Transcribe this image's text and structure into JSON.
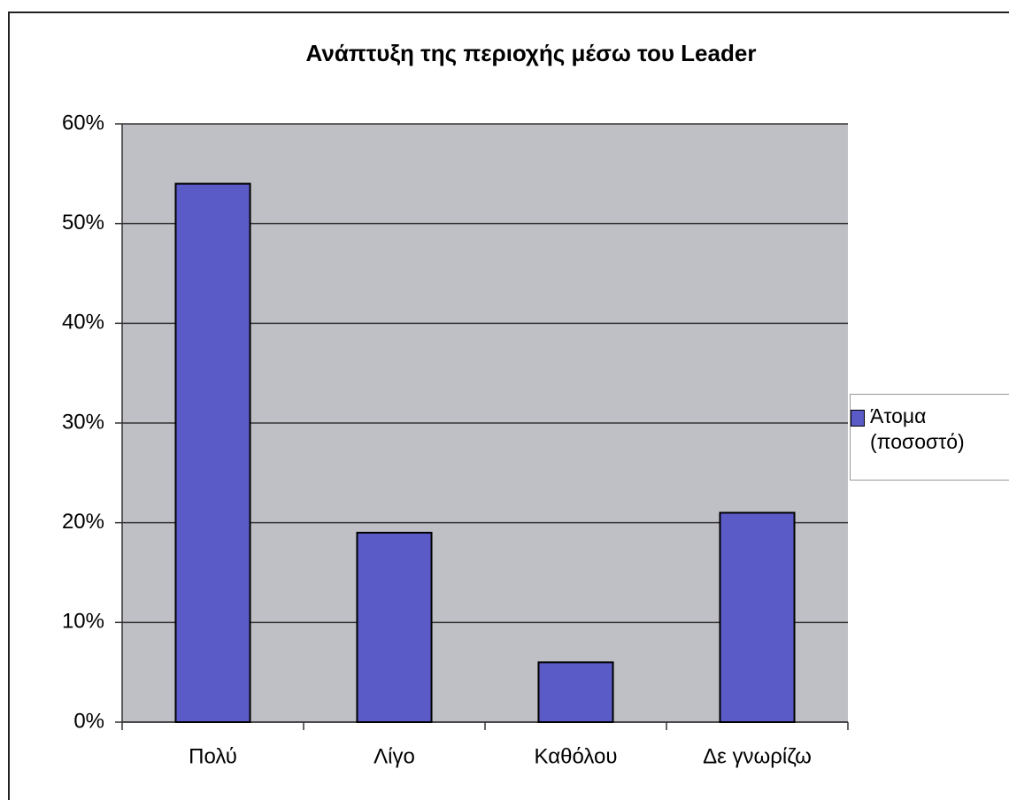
{
  "chart_data": {
    "type": "bar",
    "title": "Ανάπτυξη της περιοχής μέσω του Leader",
    "categories": [
      "Πολύ",
      "Λίγο",
      "Καθόλου",
      "Δε γνωρίζω"
    ],
    "series": [
      {
        "name": "Άτομα (ποσοστό)",
        "color": "#5b5bc8",
        "values": [
          54,
          19,
          6,
          21
        ]
      }
    ],
    "ylim": [
      0,
      60
    ],
    "yticks": [
      {
        "value": 0,
        "label": "0%"
      },
      {
        "value": 10,
        "label": "10%"
      },
      {
        "value": 20,
        "label": "20%"
      },
      {
        "value": 30,
        "label": "30%"
      },
      {
        "value": 40,
        "label": "40%"
      },
      {
        "value": 50,
        "label": "50%"
      },
      {
        "value": 60,
        "label": "60%"
      }
    ],
    "grid": true,
    "legend": "right"
  }
}
